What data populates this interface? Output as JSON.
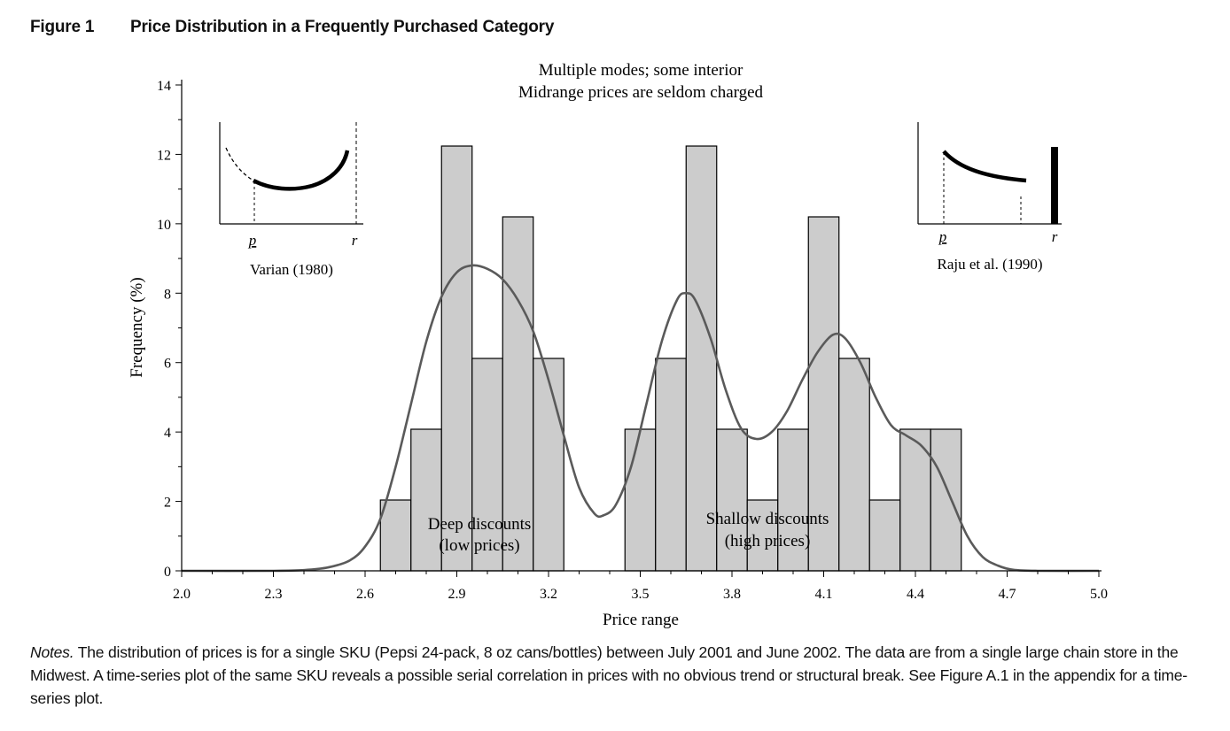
{
  "figure": {
    "number": "Figure 1",
    "title": "Price Distribution in a Frequently Purchased Category"
  },
  "notes": {
    "label": "Notes.",
    "text": "The distribution of prices is for a single SKU (Pepsi 24-pack, 8 oz cans/bottles) between July 2001 and June 2002. The data are from a single large chain store in the Midwest. A time-series plot of the same SKU reveals a possible serial correlation in prices with no obvious trend or structural break. See Figure A.1 in the appendix for a time-series plot."
  },
  "chart_data": {
    "type": "bar",
    "xlabel": "Price range",
    "ylabel": "Frequency (%)",
    "xlim": [
      2.0,
      5.0
    ],
    "ylim": [
      0,
      14
    ],
    "x_ticks": [
      "2.0",
      "2.3",
      "2.6",
      "2.9",
      "3.2",
      "3.5",
      "3.8",
      "4.1",
      "4.4",
      "4.7",
      "5.0"
    ],
    "y_ticks": [
      "0",
      "2",
      "4",
      "6",
      "8",
      "10",
      "12",
      "14"
    ],
    "bin_width": 0.1,
    "bins": [
      {
        "start": 2.65,
        "value": 2.04
      },
      {
        "start": 2.75,
        "value": 4.08
      },
      {
        "start": 2.85,
        "value": 12.24
      },
      {
        "start": 2.95,
        "value": 6.12
      },
      {
        "start": 3.05,
        "value": 10.2
      },
      {
        "start": 3.15,
        "value": 6.12
      },
      {
        "start": 3.45,
        "value": 4.08
      },
      {
        "start": 3.55,
        "value": 6.12
      },
      {
        "start": 3.65,
        "value": 12.24
      },
      {
        "start": 3.75,
        "value": 4.08
      },
      {
        "start": 3.85,
        "value": 2.04
      },
      {
        "start": 3.95,
        "value": 4.08
      },
      {
        "start": 4.05,
        "value": 10.2
      },
      {
        "start": 4.15,
        "value": 6.12
      },
      {
        "start": 4.25,
        "value": 2.04
      },
      {
        "start": 4.35,
        "value": 4.08
      },
      {
        "start": 4.45,
        "value": 4.08
      }
    ],
    "density_curve": [
      [
        2.0,
        0.0
      ],
      [
        2.3,
        0.0
      ],
      [
        2.4,
        0.02
      ],
      [
        2.48,
        0.1
      ],
      [
        2.55,
        0.3
      ],
      [
        2.6,
        0.7
      ],
      [
        2.65,
        1.5
      ],
      [
        2.7,
        3.0
      ],
      [
        2.75,
        4.8
      ],
      [
        2.8,
        6.6
      ],
      [
        2.85,
        7.9
      ],
      [
        2.9,
        8.6
      ],
      [
        2.95,
        8.8
      ],
      [
        3.0,
        8.7
      ],
      [
        3.05,
        8.4
      ],
      [
        3.1,
        7.8
      ],
      [
        3.15,
        6.9
      ],
      [
        3.2,
        5.5
      ],
      [
        3.25,
        3.9
      ],
      [
        3.3,
        2.4
      ],
      [
        3.35,
        1.65
      ],
      [
        3.38,
        1.6
      ],
      [
        3.42,
        1.9
      ],
      [
        3.47,
        3.0
      ],
      [
        3.52,
        4.8
      ],
      [
        3.57,
        6.6
      ],
      [
        3.62,
        7.8
      ],
      [
        3.65,
        8.0
      ],
      [
        3.68,
        7.8
      ],
      [
        3.73,
        6.7
      ],
      [
        3.78,
        5.2
      ],
      [
        3.83,
        4.1
      ],
      [
        3.88,
        3.8
      ],
      [
        3.93,
        4.0
      ],
      [
        3.98,
        4.6
      ],
      [
        4.03,
        5.5
      ],
      [
        4.08,
        6.3
      ],
      [
        4.13,
        6.8
      ],
      [
        4.17,
        6.7
      ],
      [
        4.22,
        6.0
      ],
      [
        4.27,
        5.0
      ],
      [
        4.32,
        4.2
      ],
      [
        4.37,
        3.9
      ],
      [
        4.42,
        3.6
      ],
      [
        4.47,
        3.0
      ],
      [
        4.52,
        2.0
      ],
      [
        4.57,
        1.0
      ],
      [
        4.62,
        0.4
      ],
      [
        4.67,
        0.15
      ],
      [
        4.72,
        0.03
      ],
      [
        4.8,
        0.0
      ],
      [
        5.0,
        0.0
      ]
    ],
    "annotations": {
      "top_line1": "Multiple modes; some interior",
      "top_line2": "Midrange prices are seldom charged",
      "left_line1": "Deep discounts",
      "left_line2": "(low prices)",
      "right_line1": "Shallow discounts",
      "right_line2": "(high prices)"
    },
    "insets": [
      {
        "caption": "Varian (1980)",
        "low_label": "p",
        "high_label": "r"
      },
      {
        "caption": "Raju et al. (1990)",
        "low_label": "p",
        "high_label": "r"
      }
    ],
    "colors": {
      "bar_fill": "#cccccc",
      "bar_stroke": "#000000",
      "curve": "#5a5a5a"
    },
    "legend": "none",
    "grid": false
  }
}
